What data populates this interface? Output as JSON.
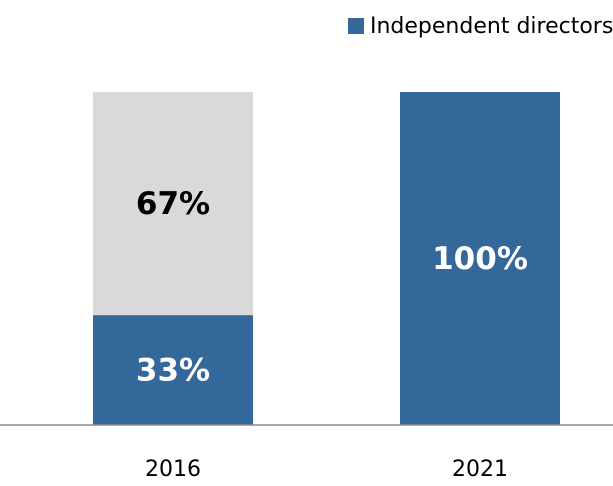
{
  "chart_data": {
    "type": "stacked_bar",
    "categories": [
      "2016",
      "2021"
    ],
    "series": [
      {
        "name": "Independent directors",
        "color": "#34679a",
        "label_color": "#ffffff",
        "values": [
          33,
          100
        ],
        "value_labels": [
          "33%",
          "100%"
        ]
      },
      {
        "color": "#d9d9d9",
        "label_color": "#000000",
        "values": [
          67,
          0
        ],
        "value_labels": [
          "67%",
          null
        ]
      }
    ],
    "ylim": [
      0,
      100
    ],
    "legend": "top"
  }
}
